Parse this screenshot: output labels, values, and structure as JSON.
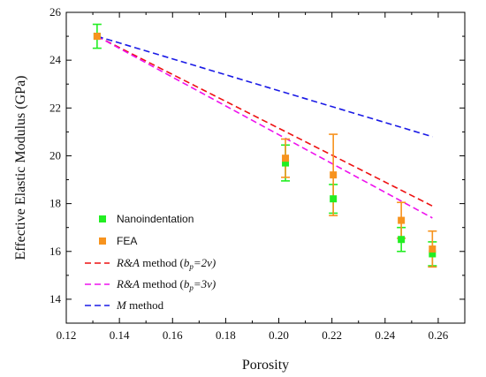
{
  "chart_data": {
    "type": "scatter",
    "title": "",
    "xlabel": "Porosity",
    "ylabel": "Effective Elastic Modulus (GPa)",
    "xlim": [
      0.12,
      0.27
    ],
    "ylim": [
      13,
      26
    ],
    "xticks": [
      "0.12",
      "0.14",
      "0.16",
      "0.18",
      "0.20",
      "0.22",
      "0.24",
      "0.26"
    ],
    "yticks": [
      "14",
      "16",
      "18",
      "20",
      "22",
      "24",
      "26"
    ],
    "grid": false,
    "legend_position": "bottom-left",
    "series": [
      {
        "name": "Nanoindentation",
        "kind": "scatter",
        "marker": "square",
        "color": "#22ee22",
        "x": [
          0.1316,
          0.2025,
          0.2205,
          0.2461,
          0.2578
        ],
        "y": [
          25.0,
          19.7,
          18.2,
          16.5,
          15.9
        ],
        "err": [
          0.5,
          0.75,
          0.6,
          0.5,
          0.5
        ]
      },
      {
        "name": "FEA",
        "kind": "scatter",
        "marker": "square",
        "color": "#f7931e",
        "x": [
          0.1316,
          0.2025,
          0.2205,
          0.2461,
          0.2578
        ],
        "y": [
          25.0,
          19.9,
          19.2,
          17.3,
          16.1
        ],
        "err": [
          0.0,
          0.8,
          1.7,
          0.75,
          0.75
        ]
      },
      {
        "name_prefix": "R&A",
        "name_suffix": " method (",
        "name_param": "b",
        "name_sub": "p",
        "name_tail": "=2v)",
        "kind": "line",
        "dash": true,
        "color": "#ee1111",
        "x": [
          0.1316,
          0.2578
        ],
        "y": [
          25.0,
          17.9
        ]
      },
      {
        "name_prefix": "R&A",
        "name_suffix": " method (",
        "name_param": "b",
        "name_sub": "p",
        "name_tail": "=3v)",
        "kind": "line",
        "dash": true,
        "color": "#ee11ee",
        "x": [
          0.1316,
          0.2578
        ],
        "y": [
          25.0,
          17.4
        ]
      },
      {
        "name_prefix": "M",
        "name_suffix": " method",
        "kind": "line",
        "dash": true,
        "color": "#1a1ae6",
        "x": [
          0.1316,
          0.2578
        ],
        "y": [
          25.0,
          20.8
        ]
      }
    ]
  }
}
